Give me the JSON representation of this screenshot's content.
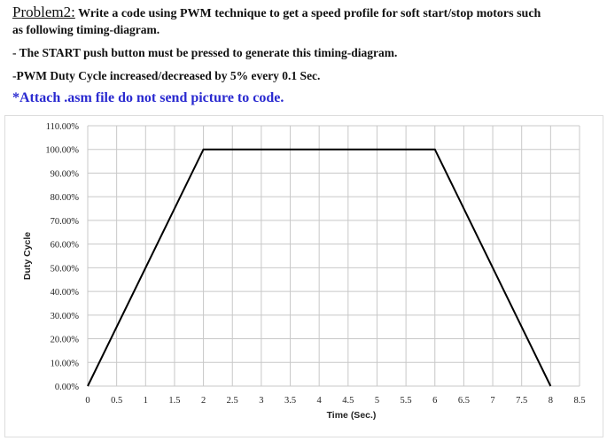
{
  "header": {
    "problem_label": "Problem2:",
    "line1": " Write a code using PWM technique to get a speed profile for soft start/stop motors such",
    "line2": "as following timing-diagram.",
    "line3": "- The START push button must be pressed to generate this timing-diagram.",
    "line4": "-PWM Duty Cycle increased/decreased by 5% every 0.1 Sec.",
    "line5": "*Attach .asm file do not send picture to code.",
    "note_color": "#2a2ad0"
  },
  "chart_data": {
    "type": "line",
    "title": "",
    "xlabel": "Time (Sec.)",
    "ylabel": "Duty Cycle",
    "xlim": [
      0,
      8.5
    ],
    "ylim": [
      0,
      110
    ],
    "grid": true,
    "x_ticks": [
      "0",
      "0.5",
      "1",
      "1.5",
      "2",
      "2.5",
      "3",
      "3.5",
      "4",
      "4.5",
      "5",
      "5.5",
      "6",
      "6.5",
      "7",
      "7.5",
      "8",
      "8.5"
    ],
    "y_ticks": [
      "0.00%",
      "10.00%",
      "20.00%",
      "30.00%",
      "40.00%",
      "50.00%",
      "60.00%",
      "70.00%",
      "80.00%",
      "90.00%",
      "100.00%",
      "110.00%"
    ],
    "series": [
      {
        "x": [
          0,
          2,
          6,
          8
        ],
        "y": [
          0,
          100,
          100,
          0
        ],
        "color": "#000000"
      }
    ]
  }
}
